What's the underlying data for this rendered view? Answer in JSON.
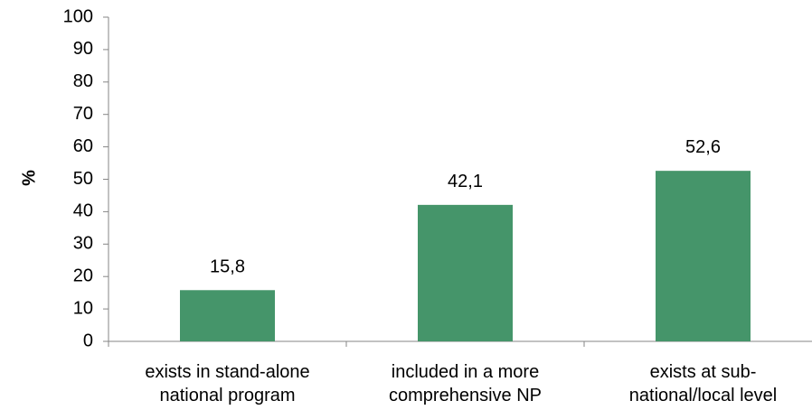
{
  "chart_data": {
    "type": "bar",
    "categories": [
      [
        "exists in stand-alone",
        "national program"
      ],
      [
        "included in a more",
        "comprehensive NP"
      ],
      [
        "exists at sub-",
        "national/local level"
      ]
    ],
    "values": [
      15.8,
      42.1,
      52.6
    ],
    "data_labels": [
      "15,8",
      "42,1",
      "52,6"
    ],
    "title": "",
    "xlabel": "",
    "ylabel": "%",
    "ylim": [
      0,
      100
    ],
    "yticks": [
      0,
      10,
      20,
      30,
      40,
      50,
      60,
      70,
      80,
      90,
      100
    ],
    "grid": false,
    "legend": "none",
    "colors": {
      "bar": "#45956a",
      "axis": "#868686",
      "text": "#000000"
    }
  }
}
